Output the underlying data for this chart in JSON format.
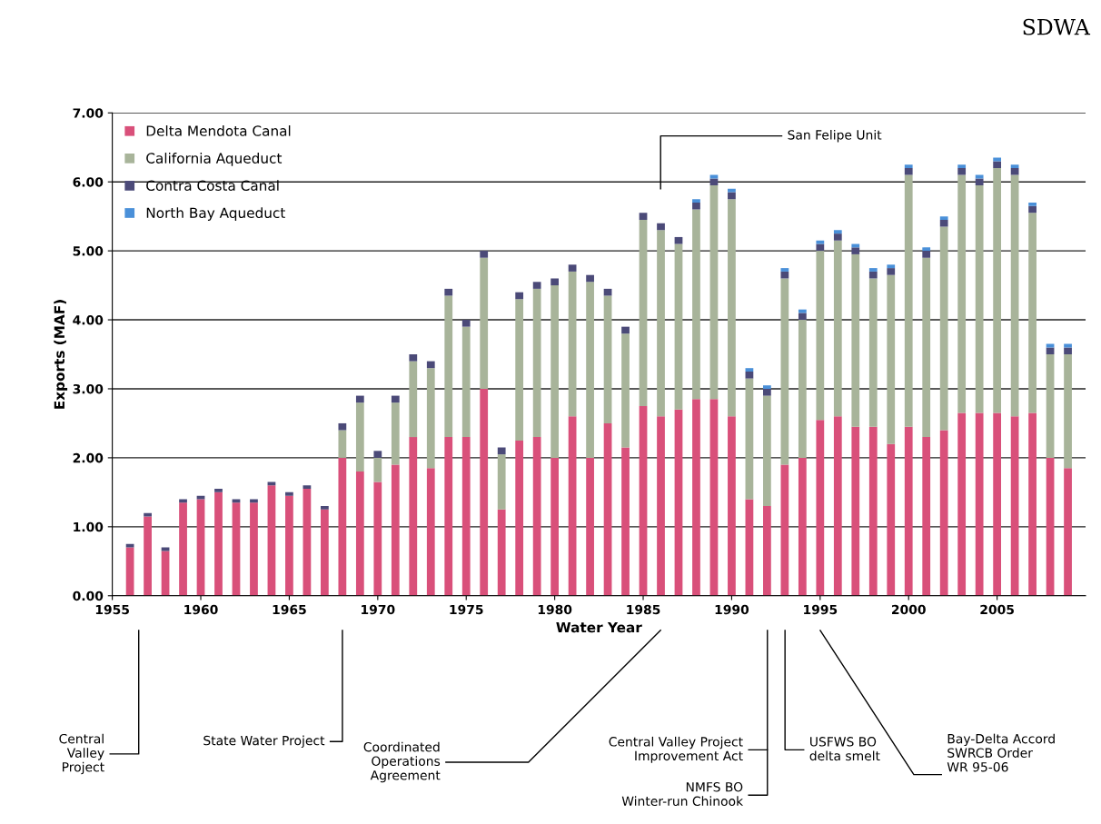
{
  "chart_data": {
    "type": "bar",
    "stacked": true,
    "xlabel": "Water Year",
    "ylabel": "Exports (MAF)",
    "x": [
      1956,
      1957,
      1958,
      1959,
      1960,
      1961,
      1962,
      1963,
      1964,
      1965,
      1966,
      1967,
      1968,
      1969,
      1970,
      1971,
      1972,
      1973,
      1974,
      1975,
      1976,
      1977,
      1978,
      1979,
      1980,
      1981,
      1982,
      1983,
      1984,
      1985,
      1986,
      1987,
      1988,
      1989,
      1990,
      1991,
      1992,
      1993,
      1994,
      1995,
      1996,
      1997,
      1998,
      1999,
      2000,
      2001,
      2002,
      2003,
      2004,
      2005,
      2006,
      2007,
      2008,
      2009
    ],
    "series": [
      {
        "name": "Delta Mendota Canal",
        "color": "#d9507a",
        "values": [
          0.7,
          1.15,
          0.65,
          1.35,
          1.4,
          1.5,
          1.35,
          1.35,
          1.6,
          1.45,
          1.55,
          1.25,
          2.0,
          1.8,
          1.65,
          1.9,
          2.3,
          1.85,
          2.3,
          2.3,
          3.0,
          1.25,
          2.25,
          2.3,
          2.0,
          2.6,
          2.0,
          2.5,
          2.15,
          2.75,
          2.6,
          2.7,
          2.85,
          2.85,
          2.6,
          1.4,
          1.3,
          1.9,
          2.0,
          2.55,
          2.6,
          2.45,
          2.45,
          2.2,
          2.45,
          2.3,
          2.4,
          2.65,
          2.65,
          2.65,
          2.6,
          2.65,
          2.0,
          1.85
        ]
      },
      {
        "name": "California Aqueduct",
        "color": "#a8b49a",
        "values": [
          0,
          0,
          0,
          0,
          0,
          0,
          0,
          0,
          0,
          0,
          0,
          0,
          0.4,
          1.0,
          0.35,
          0.9,
          1.1,
          1.45,
          2.05,
          1.6,
          1.9,
          0.8,
          2.05,
          2.15,
          2.5,
          2.1,
          2.55,
          1.85,
          1.65,
          2.7,
          2.7,
          2.4,
          2.75,
          3.1,
          3.15,
          1.75,
          1.6,
          2.7,
          2.0,
          2.45,
          2.55,
          2.5,
          2.15,
          2.45,
          3.65,
          2.6,
          2.95,
          3.45,
          3.3,
          3.55,
          3.5,
          2.9,
          1.5,
          1.65
        ]
      },
      {
        "name": "Contra Costa Canal",
        "color": "#4b4a78",
        "values": [
          0.05,
          0.05,
          0.05,
          0.05,
          0.05,
          0.05,
          0.05,
          0.05,
          0.05,
          0.05,
          0.05,
          0.05,
          0.1,
          0.1,
          0.1,
          0.1,
          0.1,
          0.1,
          0.1,
          0.1,
          0.1,
          0.1,
          0.1,
          0.1,
          0.1,
          0.1,
          0.1,
          0.1,
          0.1,
          0.1,
          0.1,
          0.1,
          0.1,
          0.1,
          0.1,
          0.1,
          0.1,
          0.1,
          0.1,
          0.1,
          0.1,
          0.1,
          0.1,
          0.1,
          0.1,
          0.1,
          0.1,
          0.1,
          0.1,
          0.1,
          0.1,
          0.1,
          0.1,
          0.1
        ]
      },
      {
        "name": "North Bay Aqueduct",
        "color": "#4a90d9",
        "values": [
          0,
          0,
          0,
          0,
          0,
          0,
          0,
          0,
          0,
          0,
          0,
          0,
          0,
          0,
          0,
          0,
          0,
          0,
          0,
          0,
          0,
          0,
          0,
          0,
          0,
          0,
          0,
          0,
          0,
          0,
          0,
          0,
          0.05,
          0.05,
          0.05,
          0.05,
          0.05,
          0.05,
          0.05,
          0.05,
          0.05,
          0.05,
          0.05,
          0.05,
          0.05,
          0.05,
          0.05,
          0.05,
          0.05,
          0.05,
          0.05,
          0.05,
          0.05,
          0.05
        ]
      }
    ],
    "xlim": [
      1955,
      2010
    ],
    "xticks": [
      1955,
      1960,
      1965,
      1970,
      1975,
      1980,
      1985,
      1990,
      1995,
      2000,
      2005
    ],
    "ylim": [
      0,
      7
    ],
    "yticks": [
      {
        "value": 0,
        "label": "0.00"
      },
      {
        "value": 1,
        "label": "1.00"
      },
      {
        "value": 2,
        "label": "2.00"
      },
      {
        "value": 3,
        "label": "3.00"
      },
      {
        "value": 4,
        "label": "4.00"
      },
      {
        "value": 5,
        "label": "5.00"
      },
      {
        "value": 6,
        "label": "6.00"
      },
      {
        "value": 7,
        "label": "7.00"
      }
    ],
    "grid": "y",
    "legend": "top left",
    "annotations": [
      "SDWA",
      "Central\nValley\nProject",
      "State Water Project",
      "Coordinated\nOperations\nAgreement",
      "Central Valley Project\nImprovement Act",
      "NMFS BO\nWinter-run Chinook",
      "USFWS BO\ndelta smelt",
      "Bay-Delta Accord\nSWRCB Order\nWR 95-06",
      "San Felipe Unit"
    ]
  }
}
